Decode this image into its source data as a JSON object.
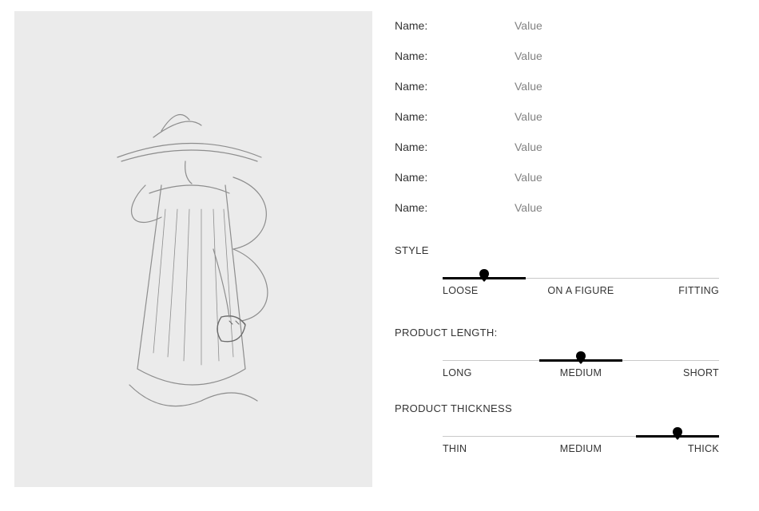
{
  "colors": {
    "panel_bg": "#ebebeb",
    "key_text": "#333333",
    "val_text": "#828282",
    "track": "#c9c9c9",
    "fill": "#000000"
  },
  "attributes": [
    {
      "key": "Name:",
      "value": "Value"
    },
    {
      "key": "Name:",
      "value": "Value"
    },
    {
      "key": "Name:",
      "value": "Value"
    },
    {
      "key": "Name:",
      "value": "Value"
    },
    {
      "key": "Name:",
      "value": "Value"
    },
    {
      "key": "Name:",
      "value": "Value"
    },
    {
      "key": "Name:",
      "value": "Value"
    }
  ],
  "sliders": {
    "style": {
      "title": "STYLE",
      "labels": [
        "LOOSE",
        "ON A FIGURE",
        "FITTING"
      ],
      "value_pct": 15,
      "fill_start_pct": 0,
      "fill_end_pct": 30
    },
    "length": {
      "title": "PRODUCT LENGTH:",
      "labels": [
        "LONG",
        "MEDIUM",
        "SHORT"
      ],
      "value_pct": 50,
      "fill_start_pct": 35,
      "fill_end_pct": 65
    },
    "thickness": {
      "title": "PRODUCT THICKNESS",
      "labels": [
        "THIN",
        "MEDIUM",
        "THICK"
      ],
      "value_pct": 85,
      "fill_start_pct": 70,
      "fill_end_pct": 100
    }
  }
}
